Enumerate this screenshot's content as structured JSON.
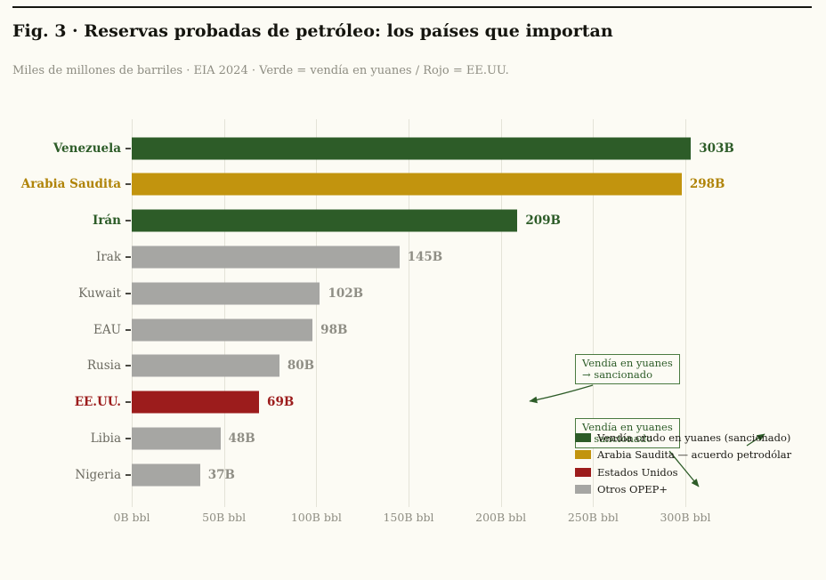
{
  "header": {
    "title": "Fig. 3 · Reservas probadas de petróleo: los países que importan",
    "subtitle": "Miles de millones de barriles · EIA 2024 · Verde = vendía en yuanes / Rojo = EE.UU."
  },
  "chart_data": {
    "type": "bar",
    "orientation": "horizontal",
    "categories": [
      "Venezuela",
      "Arabia Saudita",
      "Irán",
      "Irak",
      "Kuwait",
      "EAU",
      "Rusia",
      "EE.UU.",
      "Libia",
      "Nigeria"
    ],
    "values": [
      303,
      298,
      209,
      145,
      102,
      98,
      80,
      69,
      48,
      37
    ],
    "value_labels": [
      "303B",
      "298B",
      "209B",
      "145B",
      "102B",
      "98B",
      "80B",
      "69B",
      "48B",
      "37B"
    ],
    "groups": [
      "yuan",
      "saudi",
      "yuan",
      "otros",
      "otros",
      "otros",
      "otros",
      "usa",
      "otros",
      "otros"
    ],
    "xlim": [
      0,
      300
    ],
    "x_tick_values": [
      0,
      50,
      100,
      150,
      200,
      250,
      300
    ],
    "x_ticks": [
      "0B bbl",
      "50B bbl",
      "100B bbl",
      "150B bbl",
      "200B bbl",
      "250B bbl",
      "300B bbl"
    ],
    "grid": true,
    "colors": {
      "yuan": "#2d5c28",
      "saudi": "#c2940e",
      "usa": "#9c1c1c",
      "otros": "#a6a6a3"
    },
    "label_colors": {
      "yuan": "#2d5c28",
      "saudi": "#b08409",
      "usa": "#9c1c1c",
      "otros": "#8f8e85"
    },
    "axis_label_color": "#6b6a60",
    "accent_green": "#2d5c28",
    "legend_position": "lower right",
    "legend": [
      {
        "group": "yuan",
        "label": "Vendía crudo en yuanes (sancionado)"
      },
      {
        "group": "saudi",
        "label": "Arabia Saudita — acuerdo petrodólar"
      },
      {
        "group": "usa",
        "label": "Estados Unidos"
      },
      {
        "group": "otros",
        "label": "Otros OPEP+"
      }
    ],
    "annotations": [
      {
        "lines": [
          "Vendía en yuanes",
          "→ sancionado"
        ]
      },
      {
        "lines": [
          "Vendía en yuanes",
          "→ sancionado"
        ]
      }
    ]
  }
}
